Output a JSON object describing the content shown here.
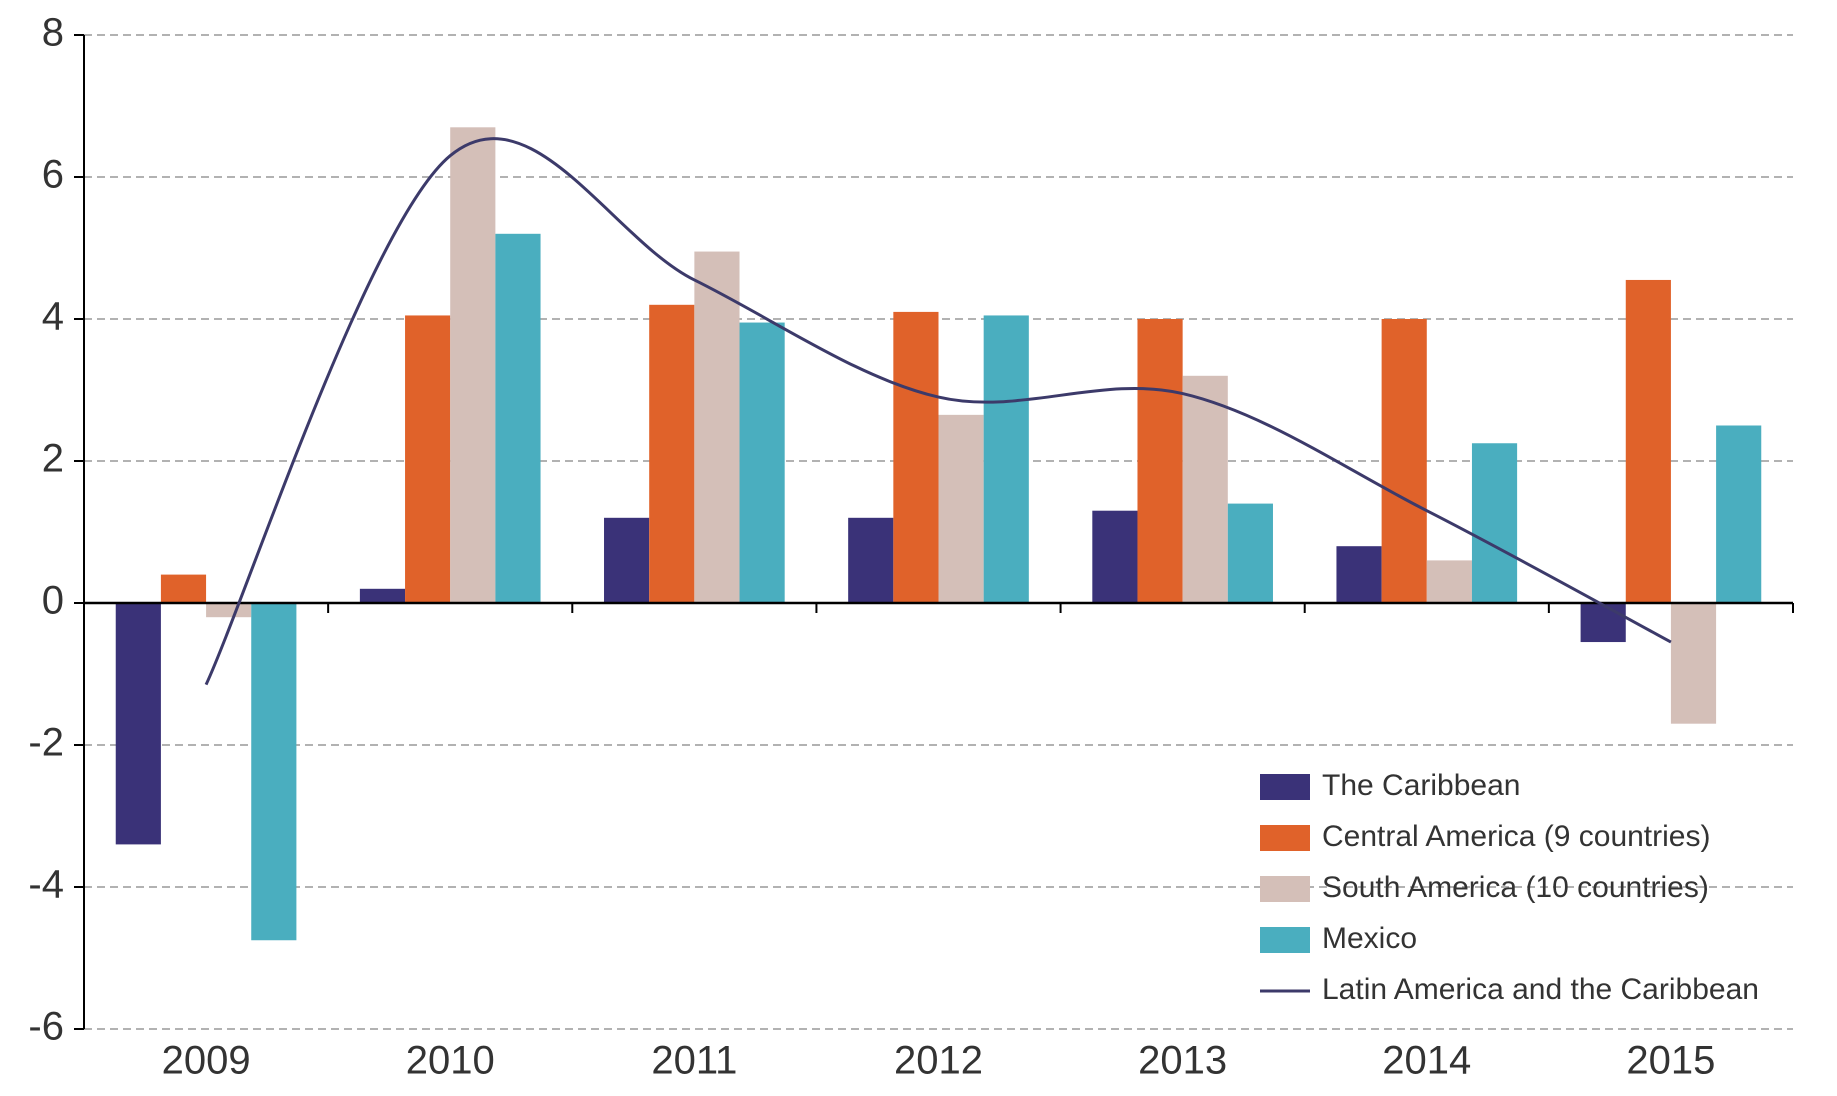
{
  "chart_data": {
    "type": "bar",
    "categories": [
      "2009",
      "2010",
      "2011",
      "2012",
      "2013",
      "2014",
      "2015"
    ],
    "series": [
      {
        "name": "The Caribbean",
        "color": "#3a3278",
        "values": [
          -3.4,
          0.2,
          1.2,
          1.2,
          1.3,
          0.8,
          -0.55
        ]
      },
      {
        "name": "Central America (9 countries)",
        "color": "#e0622a",
        "values": [
          0.4,
          4.05,
          4.2,
          4.1,
          4.0,
          4.0,
          4.55
        ]
      },
      {
        "name": "South America (10 countries)",
        "color": "#d4bfb8",
        "values": [
          -0.2,
          6.7,
          4.95,
          2.65,
          3.2,
          0.6,
          -1.7
        ]
      },
      {
        "name": "Mexico",
        "color": "#4aaebf",
        "values": [
          -4.75,
          5.2,
          3.95,
          4.05,
          1.4,
          2.25,
          2.5
        ]
      },
      {
        "name": "Latin America and the Caribbean",
        "color": "#3c3a6a",
        "type": "line",
        "values": [
          -1.15,
          6.3,
          4.55,
          2.9,
          2.95,
          1.3,
          -0.55
        ]
      }
    ],
    "ylim": [
      -6,
      8
    ],
    "yticks": [
      -6,
      -4,
      -2,
      0,
      2,
      4,
      6,
      8
    ],
    "grid": true,
    "legend": "lower right"
  }
}
